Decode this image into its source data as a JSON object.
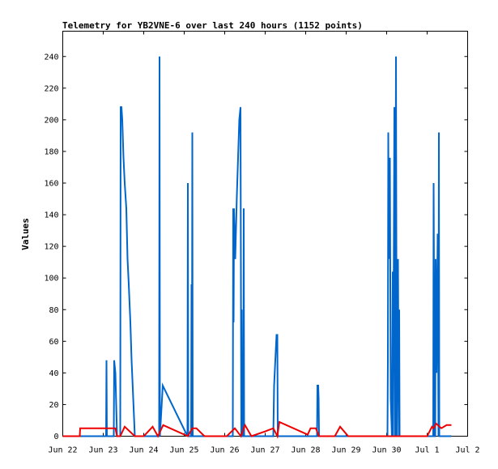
{
  "chart_data": {
    "type": "line",
    "title": "Telemetry for YB2VNE-6 over last 240 hours (1152 points)",
    "xlabel": "",
    "ylabel": "Values",
    "x_ticks": [
      "Jun 22",
      "Jun 23",
      "Jun 24",
      "Jun 25",
      "Jun 26",
      "Jun 27",
      "Jun 28",
      "Jun 29",
      "Jun 30",
      "Jul 1",
      "Jul 2"
    ],
    "x_unit": "day",
    "xlim": [
      0,
      10
    ],
    "y_ticks": [
      0,
      20,
      40,
      60,
      80,
      100,
      120,
      140,
      160,
      180,
      200,
      220,
      240
    ],
    "ylim": [
      0,
      256
    ],
    "grid": false,
    "series": [
      {
        "color": "#0066cc",
        "points": [
          [
            0.0,
            0
          ],
          [
            1.07,
            0
          ],
          [
            1.08,
            48
          ],
          [
            1.09,
            0
          ],
          [
            1.26,
            0
          ],
          [
            1.27,
            48
          ],
          [
            1.3,
            40
          ],
          [
            1.34,
            0
          ],
          [
            1.42,
            0
          ],
          [
            1.43,
            208
          ],
          [
            1.45,
            208
          ],
          [
            1.47,
            200
          ],
          [
            1.5,
            176
          ],
          [
            1.53,
            160
          ],
          [
            1.57,
            144
          ],
          [
            1.6,
            112
          ],
          [
            1.63,
            96
          ],
          [
            1.67,
            72
          ],
          [
            1.7,
            48
          ],
          [
            1.74,
            24
          ],
          [
            1.78,
            0
          ],
          [
            2.38,
            0
          ],
          [
            2.39,
            240
          ],
          [
            2.4,
            0
          ],
          [
            2.47,
            32
          ],
          [
            3.08,
            0
          ],
          [
            3.09,
            160
          ],
          [
            3.1,
            0
          ],
          [
            3.17,
            0
          ],
          [
            3.18,
            96
          ],
          [
            3.19,
            0
          ],
          [
            3.2,
            192
          ],
          [
            3.21,
            0
          ],
          [
            4.2,
            0
          ],
          [
            4.21,
            144
          ],
          [
            4.22,
            72
          ],
          [
            4.23,
            144
          ],
          [
            4.26,
            112
          ],
          [
            4.3,
            152
          ],
          [
            4.33,
            176
          ],
          [
            4.36,
            200
          ],
          [
            4.39,
            208
          ],
          [
            4.41,
            0
          ],
          [
            4.42,
            80
          ],
          [
            4.43,
            0
          ],
          [
            4.46,
            0
          ],
          [
            4.47,
            144
          ],
          [
            4.48,
            0
          ],
          [
            5.2,
            0
          ],
          [
            5.22,
            32
          ],
          [
            5.25,
            48
          ],
          [
            5.28,
            64
          ],
          [
            5.3,
            64
          ],
          [
            5.31,
            0
          ],
          [
            6.28,
            0
          ],
          [
            6.29,
            32
          ],
          [
            6.31,
            32
          ],
          [
            6.32,
            24
          ],
          [
            6.33,
            0
          ],
          [
            8.02,
            0
          ],
          [
            8.03,
            48
          ],
          [
            8.04,
            192
          ],
          [
            8.05,
            112
          ],
          [
            8.08,
            176
          ],
          [
            8.1,
            24
          ],
          [
            8.13,
            0
          ],
          [
            8.15,
            104
          ],
          [
            8.16,
            0
          ],
          [
            8.19,
            208
          ],
          [
            8.21,
            0
          ],
          [
            8.23,
            240
          ],
          [
            8.25,
            0
          ],
          [
            8.28,
            112
          ],
          [
            8.3,
            0
          ],
          [
            8.31,
            80
          ],
          [
            8.32,
            0
          ],
          [
            9.15,
            0
          ],
          [
            9.16,
            160
          ],
          [
            9.17,
            96
          ],
          [
            9.18,
            0
          ],
          [
            9.2,
            0
          ],
          [
            9.21,
            112
          ],
          [
            9.23,
            40
          ],
          [
            9.26,
            128
          ],
          [
            9.28,
            0
          ],
          [
            9.29,
            192
          ],
          [
            9.3,
            0
          ],
          [
            9.6,
            0
          ]
        ]
      },
      {
        "color": "#ee0000",
        "points": [
          [
            0.0,
            0
          ],
          [
            0.42,
            0
          ],
          [
            0.43,
            5
          ],
          [
            1.3,
            5
          ],
          [
            1.34,
            0
          ],
          [
            1.42,
            0
          ],
          [
            1.53,
            6
          ],
          [
            1.78,
            0
          ],
          [
            2.0,
            0
          ],
          [
            2.22,
            6
          ],
          [
            2.35,
            0
          ],
          [
            2.48,
            7
          ],
          [
            2.74,
            4
          ],
          [
            3.09,
            0
          ],
          [
            3.2,
            5
          ],
          [
            3.3,
            5
          ],
          [
            3.5,
            0
          ],
          [
            4.05,
            0
          ],
          [
            4.25,
            5
          ],
          [
            4.4,
            0
          ],
          [
            4.5,
            7
          ],
          [
            4.66,
            0
          ],
          [
            5.0,
            3
          ],
          [
            5.2,
            5
          ],
          [
            5.3,
            0
          ],
          [
            5.35,
            9
          ],
          [
            6.05,
            1
          ],
          [
            6.12,
            5
          ],
          [
            6.25,
            5
          ],
          [
            6.33,
            0
          ],
          [
            6.4,
            0
          ],
          [
            6.72,
            0
          ],
          [
            6.85,
            6
          ],
          [
            7.05,
            0
          ],
          [
            8.2,
            0
          ],
          [
            9.0,
            0
          ],
          [
            9.12,
            6
          ],
          [
            9.16,
            5
          ],
          [
            9.22,
            8
          ],
          [
            9.35,
            5
          ],
          [
            9.48,
            7
          ],
          [
            9.6,
            7
          ]
        ]
      }
    ]
  }
}
